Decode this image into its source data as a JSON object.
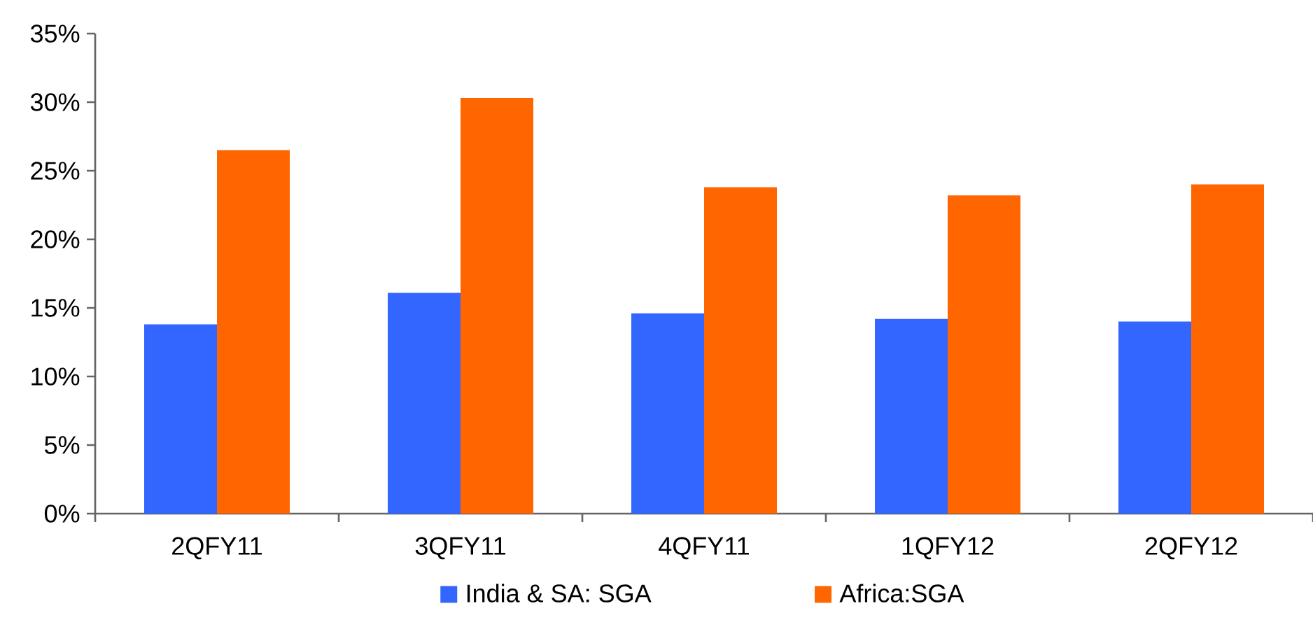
{
  "chart_data": {
    "type": "bar",
    "categories": [
      "2QFY11",
      "3QFY11",
      "4QFY11",
      "1QFY12",
      "2QFY12"
    ],
    "series": [
      {
        "name": "India & SA: SGA",
        "color": "#3366ff",
        "values": [
          13.8,
          16.1,
          14.6,
          14.2,
          14.0
        ]
      },
      {
        "name": "Africa:SGA",
        "color": "#ff6600",
        "values": [
          26.5,
          30.3,
          23.8,
          23.2,
          24.0
        ]
      }
    ],
    "ylim": [
      0,
      35
    ],
    "yticks": [
      {
        "value": 0,
        "label": "0%"
      },
      {
        "value": 5,
        "label": "5%"
      },
      {
        "value": 10,
        "label": "10%"
      },
      {
        "value": 15,
        "label": "15%"
      },
      {
        "value": 20,
        "label": "20%"
      },
      {
        "value": 25,
        "label": "25%"
      },
      {
        "value": 30,
        "label": "30%"
      },
      {
        "value": 35,
        "label": "35%"
      }
    ],
    "grid": false,
    "legend": "bottom"
  }
}
